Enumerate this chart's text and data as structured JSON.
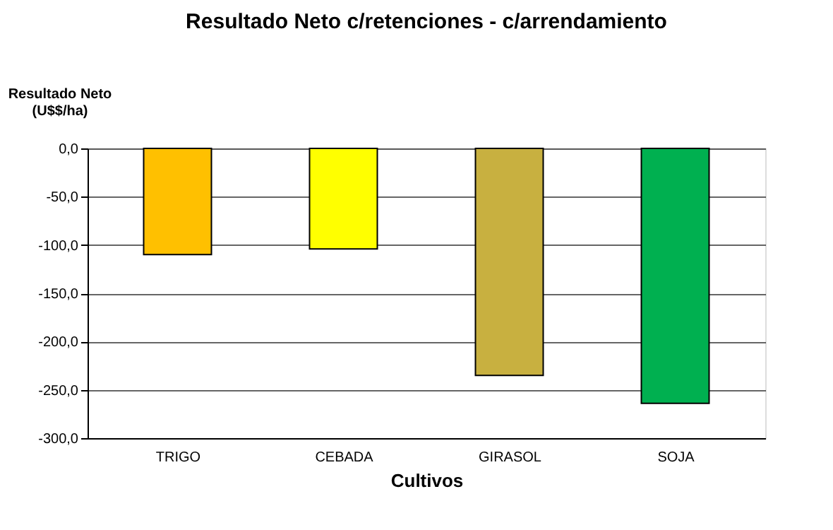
{
  "chart_data": {
    "type": "bar",
    "title": "Resultado Neto c/retenciones - c/arrendamiento",
    "xlabel": "Cultivos",
    "ylabel": "Resultado Neto\n(U$$/ha)",
    "categories": [
      "TRIGO",
      "CEBADA",
      "GIRASOL",
      "SOJA"
    ],
    "values": [
      -110,
      -104,
      -235,
      -264
    ],
    "colors": [
      "#ffc000",
      "#ffff00",
      "#c8b040",
      "#00b050"
    ],
    "ylim": [
      -300,
      0
    ],
    "yticks": [
      {
        "value": 0,
        "label": "0,0"
      },
      {
        "value": -50,
        "label": "-50,0"
      },
      {
        "value": -100,
        "label": "-100,0"
      },
      {
        "value": -150,
        "label": "-150,0"
      },
      {
        "value": -200,
        "label": "-200,0"
      },
      {
        "value": -250,
        "label": "-250,0"
      },
      {
        "value": -300,
        "label": "-300,0"
      }
    ],
    "grid": "y",
    "legend": false
  }
}
